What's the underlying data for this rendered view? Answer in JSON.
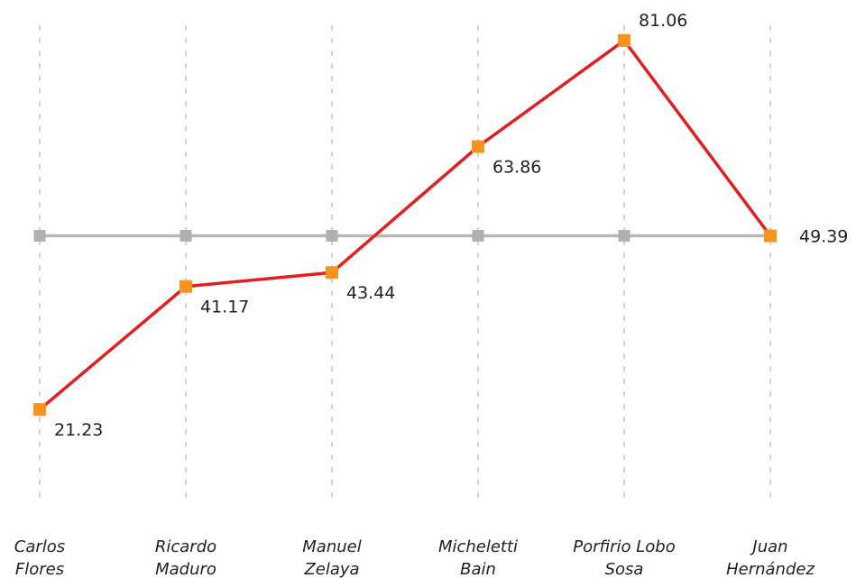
{
  "chart_data": {
    "type": "line",
    "categories": [
      [
        "Carlos",
        "Flores"
      ],
      [
        "Ricardo",
        "Maduro"
      ],
      [
        "Manuel",
        "Zelaya"
      ],
      [
        "Micheletti",
        "Bain"
      ],
      [
        "Porfirio Lobo",
        "Sosa"
      ],
      [
        "Juan",
        "Hernández"
      ]
    ],
    "series": [
      {
        "values": [
          21.23,
          41.17,
          43.44,
          63.86,
          81.06,
          49.39
        ]
      },
      {
        "values": [
          49.39,
          49.39,
          49.39,
          49.39,
          49.39,
          49.39
        ]
      }
    ],
    "data_labels": [
      "21.23",
      "41.17",
      "43.44",
      "63.86",
      "81.06",
      "49.39"
    ],
    "ylim": [
      7.5,
      85
    ],
    "grid": "vertical-dashed",
    "title": "",
    "xlabel": "",
    "ylabel": "",
    "colors": {
      "main_line": "#e02020",
      "main_marker": "#f7931e",
      "reference_line": "#b8b8b8",
      "reference_marker": "#b0b0b0",
      "grid": "#c8c8c8",
      "text": "#222222"
    }
  }
}
